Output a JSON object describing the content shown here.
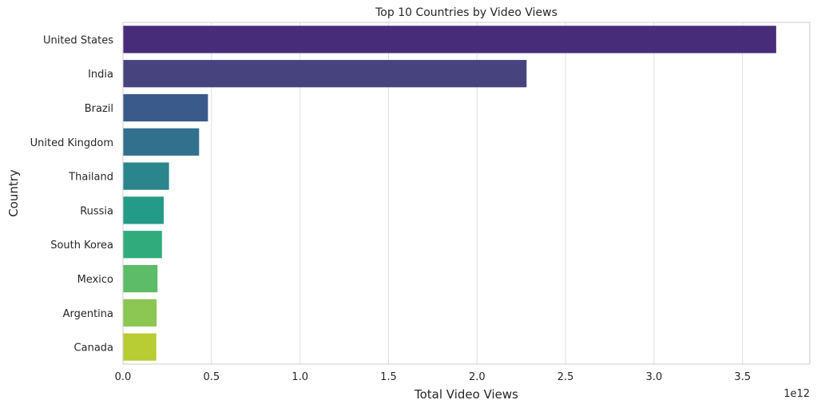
{
  "chart_data": {
    "type": "bar",
    "orientation": "horizontal",
    "title": "Top 10 Countries by Video Views",
    "xlabel": "Total Video Views",
    "ylabel": "Country",
    "x_scale_label": "1e12",
    "categories": [
      "United States",
      "India",
      "Brazil",
      "United Kingdom",
      "Thailand",
      "Russia",
      "South Korea",
      "Mexico",
      "Argentina",
      "Canada"
    ],
    "values": [
      3.69,
      2.28,
      0.48,
      0.43,
      0.26,
      0.23,
      0.22,
      0.195,
      0.19,
      0.188
    ],
    "value_multiplier": 1000000000000.0,
    "xlim": [
      0,
      3.88
    ],
    "xticks": [
      "0.0",
      "0.5",
      "1.0",
      "1.5",
      "2.0",
      "2.5",
      "3.0",
      "3.5"
    ],
    "grid": "x",
    "legend": "none",
    "colors": [
      "#472c7a",
      "#46437f",
      "#3b5a8c",
      "#31718e",
      "#2a858d",
      "#249a88",
      "#30ac7c",
      "#5cbc68",
      "#8cc653",
      "#b8cc34"
    ]
  }
}
